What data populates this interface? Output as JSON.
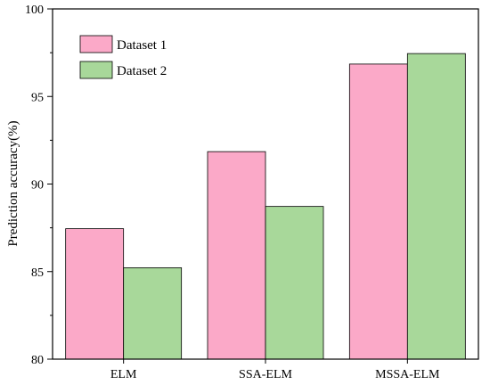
{
  "chart_data": {
    "type": "bar",
    "categories": [
      "ELM",
      "SSA-ELM",
      "MSSA-ELM"
    ],
    "series": [
      {
        "name": "Dataset 1",
        "values": [
          87.45,
          91.85,
          96.85
        ],
        "color": "#FBA9C8"
      },
      {
        "name": "Dataset 2",
        "values": [
          85.22,
          88.72,
          97.45
        ],
        "color": "#A8D89A"
      }
    ],
    "xlabel": "",
    "ylabel": "Prediction accuracy(%)",
    "ylim": [
      80,
      100
    ],
    "yticks": [
      80,
      85,
      90,
      95,
      100
    ],
    "grid": false,
    "legend": "top-left"
  }
}
